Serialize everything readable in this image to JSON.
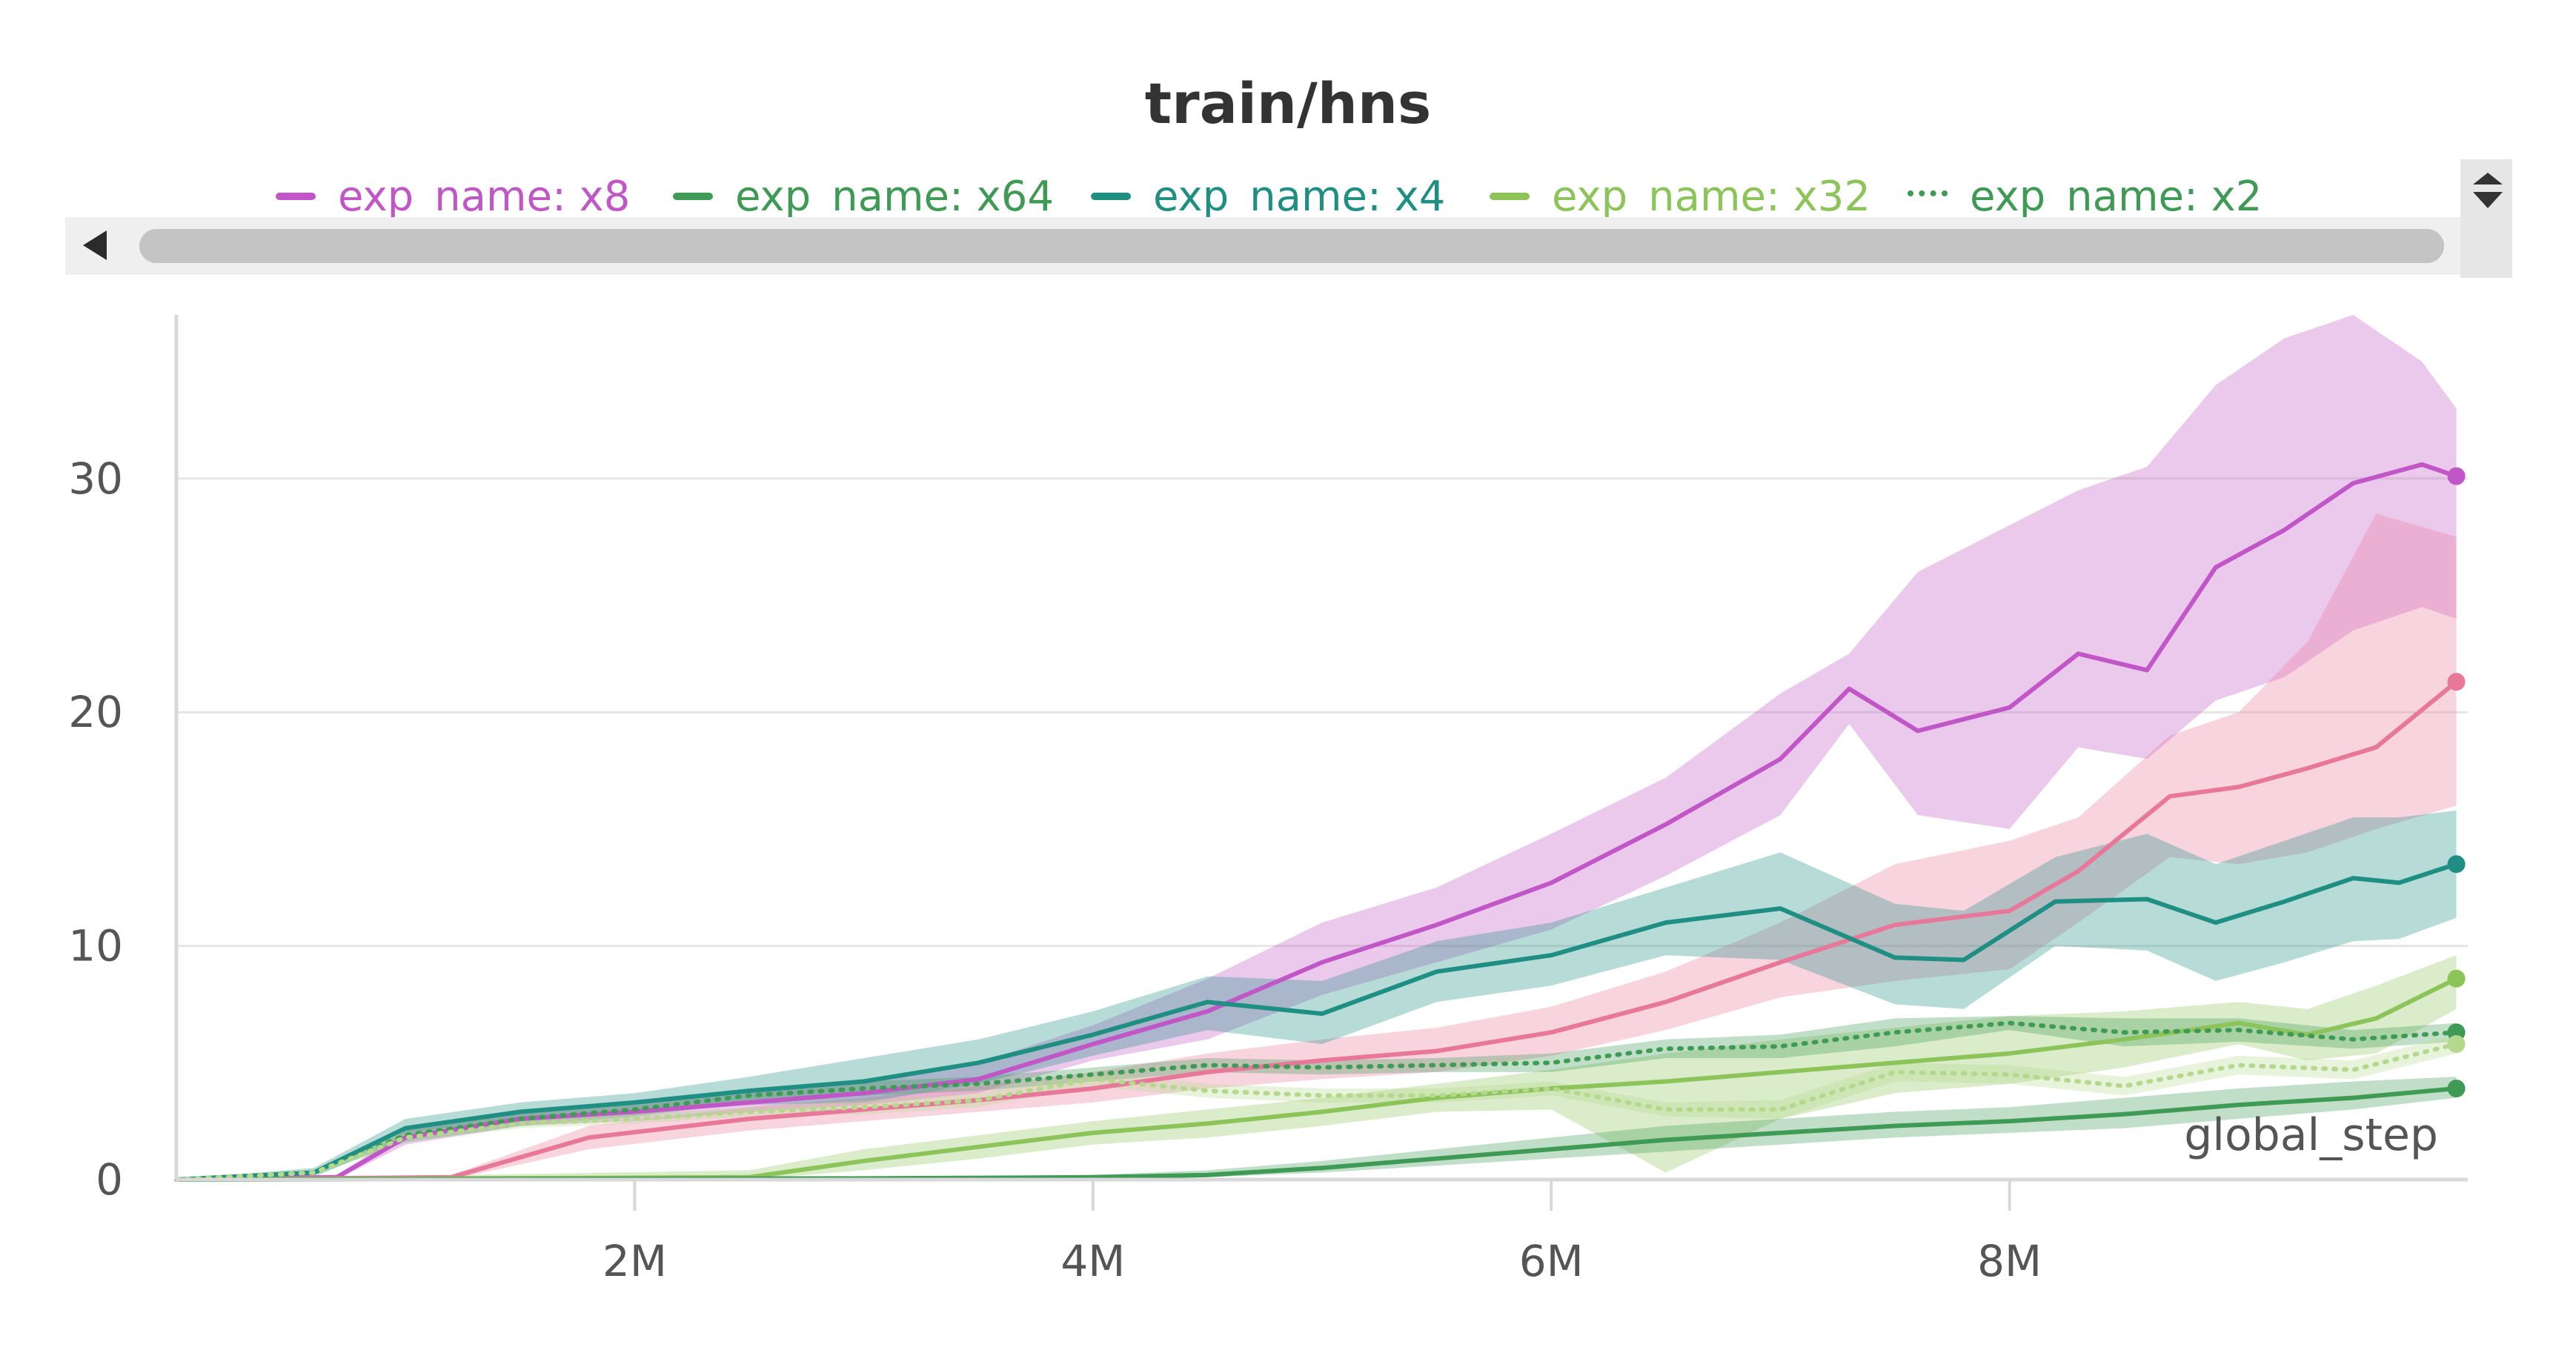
{
  "chart_data": {
    "type": "line",
    "title": "train/hns",
    "xlabel": "global_step",
    "ylabel": "",
    "xlim": [
      0,
      10000000
    ],
    "ylim": [
      0,
      37
    ],
    "x_ticks": [
      {
        "value": 2000000,
        "label": "2M"
      },
      {
        "value": 4000000,
        "label": "4M"
      },
      {
        "value": 6000000,
        "label": "6M"
      },
      {
        "value": 8000000,
        "label": "8M"
      }
    ],
    "y_ticks": [
      {
        "value": 0,
        "label": "0"
      },
      {
        "value": 10,
        "label": "10"
      },
      {
        "value": 20,
        "label": "20"
      },
      {
        "value": 30,
        "label": "30"
      }
    ],
    "grid": true,
    "legend_position": "top",
    "legend": [
      {
        "label": "exp_name: x8",
        "color": "#c157c6",
        "style": "solid"
      },
      {
        "label": "exp_name: x64",
        "color": "#3f9a55",
        "style": "solid"
      },
      {
        "label": "exp_name: x4",
        "color": "#1f8f84",
        "style": "solid"
      },
      {
        "label": "exp_name: x32",
        "color": "#8cc45a",
        "style": "solid"
      },
      {
        "label": "exp_name: x2",
        "color": "#3f9a55",
        "style": "dotted"
      }
    ],
    "series": [
      {
        "name": "exp_name: x8",
        "color": "#c157c6",
        "style": "solid",
        "x": [
          0,
          700000,
          1000000,
          1500000,
          2000000,
          2500000,
          3000000,
          3500000,
          4000000,
          4500000,
          5000000,
          5500000,
          6000000,
          6500000,
          7000000,
          7300000,
          7600000,
          8000000,
          8300000,
          8600000,
          8900000,
          9200000,
          9500000,
          9800000,
          9950000
        ],
        "y": [
          0,
          0.1,
          1.8,
          2.6,
          2.9,
          3.3,
          3.7,
          4.3,
          5.8,
          7.2,
          9.3,
          10.9,
          12.7,
          15.2,
          18.0,
          21.0,
          19.2,
          20.2,
          22.5,
          21.8,
          26.2,
          27.8,
          29.8,
          30.6,
          30.1
        ],
        "upper": [
          0,
          0.2,
          2.1,
          3.0,
          3.3,
          3.8,
          4.3,
          5.0,
          6.6,
          8.6,
          11.0,
          12.5,
          14.8,
          17.2,
          20.8,
          22.5,
          26.0,
          28.0,
          29.5,
          30.5,
          34.0,
          36.0,
          37.0,
          35.0,
          33.0
        ],
        "lower": [
          0,
          0.0,
          1.5,
          2.3,
          2.5,
          2.9,
          3.2,
          3.7,
          5.1,
          6.0,
          7.9,
          9.3,
          10.7,
          13.0,
          15.6,
          19.5,
          15.6,
          15.0,
          18.5,
          18.0,
          20.5,
          21.5,
          23.5,
          24.5,
          24.0
        ]
      },
      {
        "name": "",
        "color": "#e8789a",
        "style": "solid",
        "x": [
          0,
          1200000,
          1800000,
          2500000,
          3000000,
          3500000,
          4000000,
          4500000,
          5000000,
          5500000,
          6000000,
          6500000,
          7000000,
          7500000,
          8000000,
          8300000,
          8700000,
          9000000,
          9300000,
          9600000,
          9950000
        ],
        "y": [
          0,
          0.1,
          1.8,
          2.6,
          3.0,
          3.4,
          3.9,
          4.6,
          5.1,
          5.5,
          6.3,
          7.6,
          9.3,
          10.9,
          11.5,
          13.2,
          16.4,
          16.8,
          17.6,
          18.5,
          21.3
        ],
        "upper": [
          0,
          0.2,
          2.3,
          3.1,
          3.5,
          4.0,
          4.6,
          5.4,
          6.0,
          6.5,
          7.4,
          8.9,
          11.0,
          13.5,
          14.5,
          15.5,
          19.0,
          20.0,
          23.0,
          28.5,
          27.5
        ],
        "lower": [
          0,
          0.0,
          1.3,
          2.1,
          2.5,
          2.9,
          3.3,
          3.9,
          4.3,
          4.6,
          5.3,
          6.4,
          7.8,
          8.5,
          9.0,
          11.0,
          13.8,
          13.5,
          14.0,
          15.0,
          16.0
        ]
      },
      {
        "name": "exp_name: x4",
        "color": "#1f8f84",
        "style": "solid",
        "x": [
          0,
          600000,
          1000000,
          1500000,
          2000000,
          2500000,
          3000000,
          3500000,
          4000000,
          4500000,
          5000000,
          5500000,
          6000000,
          6500000,
          7000000,
          7500000,
          7800000,
          8200000,
          8600000,
          8900000,
          9200000,
          9500000,
          9700000,
          9950000
        ],
        "y": [
          0,
          0.3,
          2.2,
          2.9,
          3.3,
          3.8,
          4.2,
          5.0,
          6.2,
          7.6,
          7.1,
          8.9,
          9.6,
          11.0,
          11.6,
          9.5,
          9.4,
          11.9,
          12.0,
          11.0,
          11.9,
          12.9,
          12.7,
          13.5
        ],
        "upper": [
          0,
          0.5,
          2.6,
          3.3,
          3.7,
          4.4,
          5.2,
          6.0,
          7.2,
          8.7,
          8.5,
          10.2,
          11.0,
          12.5,
          14.0,
          11.8,
          11.5,
          13.8,
          14.8,
          13.5,
          14.5,
          15.5,
          15.5,
          15.8
        ],
        "lower": [
          0,
          0.1,
          1.8,
          2.5,
          2.9,
          3.2,
          3.3,
          4.1,
          5.3,
          6.4,
          5.8,
          7.6,
          8.3,
          9.6,
          9.4,
          7.5,
          7.3,
          10.0,
          9.8,
          8.5,
          9.3,
          10.2,
          10.3,
          11.2
        ]
      },
      {
        "name": "exp_name: x32",
        "color": "#8cc45a",
        "style": "solid",
        "x": [
          0,
          2500000,
          3000000,
          3500000,
          4000000,
          4500000,
          5000000,
          5500000,
          6000000,
          6500000,
          7000000,
          7500000,
          8000000,
          8500000,
          9000000,
          9300000,
          9600000,
          9950000
        ],
        "y": [
          0,
          0.1,
          0.8,
          1.4,
          2.0,
          2.4,
          2.9,
          3.5,
          3.9,
          4.2,
          4.6,
          5.0,
          5.4,
          6.0,
          6.7,
          6.2,
          6.9,
          8.6
        ],
        "upper": [
          0,
          0.4,
          1.3,
          1.9,
          2.5,
          3.0,
          3.5,
          4.1,
          4.7,
          5.4,
          6.0,
          6.5,
          7.0,
          7.2,
          7.6,
          7.3,
          8.3,
          9.6
        ],
        "lower": [
          0,
          0.0,
          0.4,
          0.9,
          1.5,
          1.8,
          2.3,
          2.9,
          3.0,
          0.3,
          2.6,
          3.7,
          4.1,
          4.8,
          5.8,
          5.1,
          5.4,
          7.3
        ]
      },
      {
        "name": "exp_name: x64",
        "color": "#3f9a55",
        "style": "solid",
        "x": [
          0,
          3000000,
          4000000,
          4500000,
          5000000,
          5500000,
          6000000,
          6500000,
          7000000,
          7500000,
          8000000,
          8500000,
          9000000,
          9500000,
          9950000
        ],
        "y": [
          0,
          0.05,
          0.1,
          0.2,
          0.5,
          0.9,
          1.3,
          1.7,
          2.0,
          2.3,
          2.5,
          2.8,
          3.2,
          3.5,
          3.9
        ],
        "upper": [
          0,
          0.1,
          0.2,
          0.4,
          0.8,
          1.3,
          1.8,
          2.3,
          2.6,
          2.9,
          3.1,
          3.5,
          3.9,
          4.2,
          4.4
        ],
        "lower": [
          0,
          0.0,
          0.0,
          0.1,
          0.3,
          0.6,
          0.9,
          1.2,
          1.5,
          1.8,
          2.0,
          2.2,
          2.6,
          3.0,
          3.5
        ]
      },
      {
        "name": "exp_name: x2",
        "color": "#3f9a55",
        "style": "dotted",
        "x": [
          0,
          600000,
          1000000,
          1500000,
          2000000,
          2500000,
          3000000,
          3500000,
          4000000,
          4500000,
          5000000,
          5500000,
          6000000,
          6500000,
          7000000,
          7500000,
          8000000,
          8500000,
          9000000,
          9500000,
          9950000
        ],
        "y": [
          0,
          0.3,
          1.9,
          2.6,
          3.0,
          3.6,
          3.9,
          4.1,
          4.5,
          4.9,
          4.8,
          4.9,
          5.0,
          5.6,
          5.7,
          6.3,
          6.7,
          6.3,
          6.4,
          6.0,
          6.3
        ],
        "upper": [
          0,
          0.4,
          2.2,
          2.9,
          3.3,
          3.9,
          4.2,
          4.4,
          4.8,
          5.2,
          5.1,
          5.2,
          5.4,
          6.0,
          6.2,
          6.9,
          7.0,
          6.9,
          6.9,
          6.4,
          6.7
        ],
        "lower": [
          0,
          0.2,
          1.6,
          2.3,
          2.7,
          3.3,
          3.6,
          3.8,
          4.2,
          4.6,
          4.5,
          4.6,
          4.6,
          5.2,
          5.2,
          5.7,
          6.4,
          5.7,
          5.9,
          5.6,
          5.9
        ]
      },
      {
        "name": "",
        "color": "#b5d98c",
        "style": "dotted",
        "x": [
          0,
          600000,
          1000000,
          1500000,
          2000000,
          2500000,
          3000000,
          3500000,
          4000000,
          4500000,
          5000000,
          5500000,
          6000000,
          6500000,
          7000000,
          7500000,
          8000000,
          8500000,
          9000000,
          9500000,
          9950000
        ],
        "y": [
          0,
          0.3,
          1.8,
          2.4,
          2.6,
          2.9,
          3.1,
          3.4,
          4.3,
          3.8,
          3.6,
          3.6,
          3.9,
          3.0,
          3.0,
          4.6,
          4.5,
          4.0,
          4.9,
          4.7,
          5.8
        ],
        "upper": [
          0,
          0.4,
          2.0,
          2.6,
          2.8,
          3.1,
          3.4,
          3.7,
          4.6,
          4.1,
          3.9,
          3.9,
          4.2,
          3.3,
          3.4,
          5.0,
          4.9,
          4.4,
          5.3,
          5.1,
          6.2
        ],
        "lower": [
          0,
          0.2,
          1.6,
          2.2,
          2.4,
          2.7,
          2.8,
          3.1,
          4.0,
          3.5,
          3.3,
          3.3,
          3.6,
          2.7,
          2.6,
          4.2,
          4.1,
          3.6,
          4.5,
          4.3,
          5.4
        ]
      }
    ]
  },
  "scrollbar": {
    "left_arrow_icon": "left-arrow-icon",
    "right_arrow_icon": "right-arrow-icon"
  },
  "legend_menu_icon": "up-down-caret-icon"
}
